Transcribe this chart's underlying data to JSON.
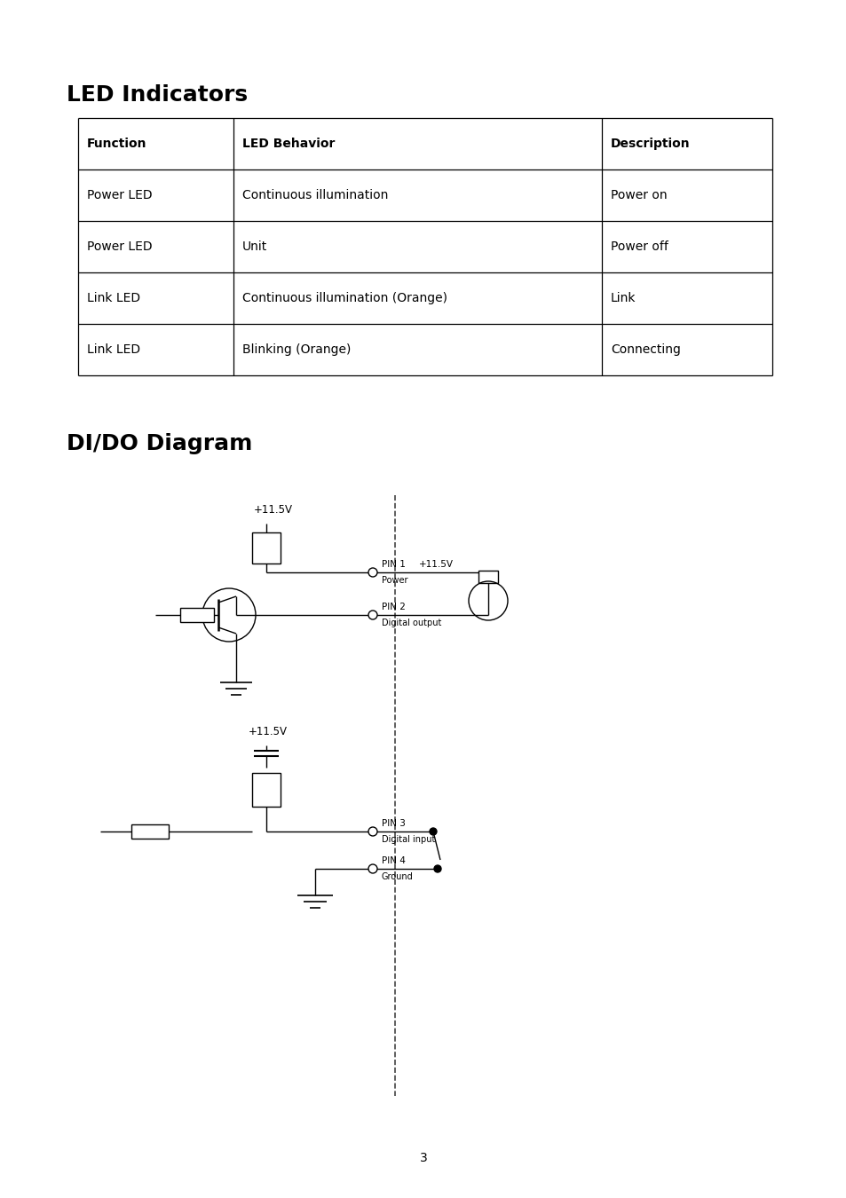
{
  "page_bg": "#ffffff",
  "title1": "LED Indicators",
  "title2": "DI/DO Diagram",
  "table_headers": [
    "Function",
    "LED Behavior",
    "Description"
  ],
  "table_rows": [
    [
      "Power LED",
      "Continuous illumination",
      "Power on"
    ],
    [
      "Power LED",
      "Unit",
      "Power off"
    ],
    [
      "Link LED",
      "Continuous illumination (Orange)",
      "Link"
    ],
    [
      "Link LED",
      "Blinking (Orange)",
      "Connecting"
    ]
  ],
  "page_number": "3",
  "voltage_label": "+11.5V"
}
